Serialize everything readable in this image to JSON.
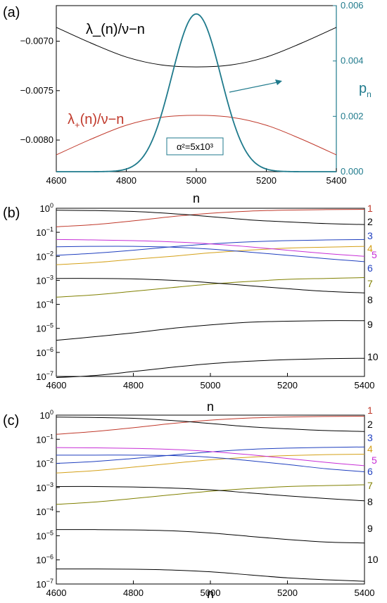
{
  "chart_data": [
    {
      "panel": "(a)",
      "type": "line",
      "xlabel": "n",
      "xlim": [
        4600,
        5400
      ],
      "xticks": [
        4600,
        4800,
        5000,
        5200,
        5400
      ],
      "ylim": [
        -0.00832,
        -0.00664
      ],
      "yticks": [
        "-0.0070",
        "-0.0075",
        "-0.0080"
      ],
      "ytick_values": [
        -0.007,
        -0.0075,
        -0.008
      ],
      "y2label_main": "p",
      "y2label_sub": "n",
      "y2lim": [
        0,
        0.006
      ],
      "y2ticks": [
        "0.000",
        "0.002",
        "0.004",
        "0.006"
      ],
      "y2tick_values": [
        0,
        0.002,
        0.004,
        0.006
      ],
      "annotation": "α²=5x10³",
      "colors": {
        "black": "#000000",
        "red": "#c0392b",
        "teal": "#1f7a8c"
      },
      "series": [
        {
          "name": "λ_(n)/ν−n",
          "axis": "left",
          "color": "#000000",
          "x": [
            4600,
            4700,
            4800,
            4900,
            5000,
            5100,
            5200,
            5300,
            5400
          ],
          "y": [
            -0.00686,
            -0.00702,
            -0.00716,
            -0.00724,
            -0.00726,
            -0.00724,
            -0.00716,
            -0.00702,
            -0.00686
          ]
        },
        {
          "name_main": "λ",
          "name_sub": "+",
          "name_rest": "(n)/ν−n",
          "axis": "left",
          "color": "#c0392b",
          "x": [
            4600,
            4700,
            4800,
            4900,
            5000,
            5100,
            5200,
            5300,
            5400
          ],
          "y": [
            -0.00815,
            -0.00799,
            -0.00785,
            -0.00777,
            -0.00775,
            -0.00777,
            -0.00785,
            -0.00799,
            -0.00815
          ]
        },
        {
          "name": "",
          "axis": "right",
          "color": "#1f7a8c",
          "shape": "gaussian",
          "center": 5000,
          "peak": 0.0057,
          "sigma": 70
        }
      ]
    },
    {
      "panel": "(b)",
      "type": "line",
      "scale": "log",
      "xlabel": "n",
      "xlim": [
        4600,
        5400
      ],
      "xticks": [
        4600,
        4800,
        5000,
        5200,
        5400
      ],
      "ylim_log10": [
        -7,
        0
      ],
      "yticks": [
        {
          "base": "10",
          "exp": "0"
        },
        {
          "base": "10",
          "exp": "-1"
        },
        {
          "base": "10",
          "exp": "-2"
        },
        {
          "base": "10",
          "exp": "-3"
        },
        {
          "base": "10",
          "exp": "-4"
        },
        {
          "base": "10",
          "exp": "-5"
        },
        {
          "base": "10",
          "exp": "-6"
        },
        {
          "base": "10",
          "exp": "-7"
        }
      ],
      "x": [
        4600,
        4700,
        4800,
        4900,
        5000,
        5100,
        5200,
        5300,
        5400
      ],
      "series": [
        {
          "label": "1",
          "color": "#c0392b",
          "y": [
            0.17,
            0.21,
            0.3,
            0.45,
            0.62,
            0.76,
            0.84,
            0.88,
            0.9
          ]
        },
        {
          "label": "2",
          "color": "#000000",
          "y": [
            0.83,
            0.8,
            0.74,
            0.6,
            0.45,
            0.33,
            0.27,
            0.23,
            0.21
          ]
        },
        {
          "label": "3",
          "color": "#1f3fbf",
          "y": [
            0.011,
            0.0135,
            0.018,
            0.025,
            0.033,
            0.04,
            0.045,
            0.048,
            0.05
          ]
        },
        {
          "label": "4",
          "color": "#d4a017",
          "y": [
            0.0045,
            0.0055,
            0.0075,
            0.01,
            0.014,
            0.018,
            0.022,
            0.024,
            0.026
          ]
        },
        {
          "label": "5",
          "color": "#c72ed6",
          "y": [
            0.05,
            0.048,
            0.045,
            0.04,
            0.033,
            0.025,
            0.018,
            0.013,
            0.01
          ]
        },
        {
          "label": "6",
          "color": "#1f3fbf",
          "y": [
            0.025,
            0.026,
            0.026,
            0.024,
            0.02,
            0.015,
            0.011,
            0.008,
            0.006
          ]
        },
        {
          "label": "7",
          "color": "#808000",
          "y": [
            0.0002,
            0.00025,
            0.00035,
            0.0005,
            0.0007,
            0.0009,
            0.0011,
            0.0012,
            0.0013
          ]
        },
        {
          "label": "8",
          "color": "#000000",
          "y": [
            0.0012,
            0.0012,
            0.00115,
            0.001,
            0.0008,
            0.0006,
            0.00045,
            0.00035,
            0.0003
          ]
        },
        {
          "label": "9",
          "color": "#000000",
          "y": [
            3.2e-06,
            4.5e-06,
            6.5e-06,
            1e-05,
            1.4e-05,
            1.8e-05,
            2e-05,
            2.1e-05,
            2.1e-05
          ]
        },
        {
          "label": "10",
          "color": "#000000",
          "y": [
            9e-08,
            1.1e-07,
            1.6e-07,
            2.4e-07,
            3.4e-07,
            4.3e-07,
            5e-07,
            5.5e-07,
            5.7e-07
          ]
        }
      ]
    },
    {
      "panel": "(c)",
      "type": "line",
      "scale": "log",
      "xlabel": "n",
      "xlim": [
        4600,
        5400
      ],
      "xticks": [
        4600,
        4800,
        5000,
        5200,
        5400
      ],
      "ylim_log10": [
        -7,
        0
      ],
      "yticks": [
        {
          "base": "10",
          "exp": "0"
        },
        {
          "base": "10",
          "exp": "-1"
        },
        {
          "base": "10",
          "exp": "-2"
        },
        {
          "base": "10",
          "exp": "-3"
        },
        {
          "base": "10",
          "exp": "-4"
        },
        {
          "base": "10",
          "exp": "-5"
        },
        {
          "base": "10",
          "exp": "-6"
        },
        {
          "base": "10",
          "exp": "-7"
        }
      ],
      "x": [
        4600,
        4700,
        4800,
        4900,
        5000,
        5100,
        5200,
        5300,
        5400
      ],
      "series": [
        {
          "label": "1",
          "color": "#c0392b",
          "y": [
            0.16,
            0.21,
            0.3,
            0.45,
            0.62,
            0.76,
            0.84,
            0.88,
            0.9
          ]
        },
        {
          "label": "2",
          "color": "#000000",
          "y": [
            0.83,
            0.8,
            0.74,
            0.6,
            0.45,
            0.33,
            0.27,
            0.23,
            0.21
          ]
        },
        {
          "label": "3",
          "color": "#1f3fbf",
          "y": [
            0.01,
            0.012,
            0.016,
            0.022,
            0.03,
            0.038,
            0.043,
            0.046,
            0.048
          ]
        },
        {
          "label": "4",
          "color": "#d4a017",
          "y": [
            0.004,
            0.005,
            0.007,
            0.01,
            0.014,
            0.018,
            0.021,
            0.023,
            0.024
          ]
        },
        {
          "label": "5",
          "color": "#c72ed6",
          "y": [
            0.045,
            0.044,
            0.042,
            0.038,
            0.031,
            0.023,
            0.016,
            0.011,
            0.008
          ]
        },
        {
          "label": "6",
          "color": "#1f3fbf",
          "y": [
            0.022,
            0.022,
            0.022,
            0.021,
            0.018,
            0.013,
            0.009,
            0.006,
            0.0045
          ]
        },
        {
          "label": "7",
          "color": "#808000",
          "y": [
            0.0002,
            0.00025,
            0.00035,
            0.0005,
            0.0007,
            0.0009,
            0.0011,
            0.0012,
            0.0013
          ]
        },
        {
          "label": "8",
          "color": "#000000",
          "y": [
            0.0011,
            0.0011,
            0.00105,
            0.00095,
            0.0008,
            0.0006,
            0.00045,
            0.00035,
            0.00028
          ]
        },
        {
          "label": "9",
          "color": "#000000",
          "y": [
            1.8e-05,
            1.8e-05,
            1.75e-05,
            1.6e-05,
            1.3e-05,
            9.5e-06,
            7e-06,
            5.5e-06,
            5e-06
          ]
        },
        {
          "label": "10",
          "color": "#000000",
          "y": [
            4.2e-07,
            4.2e-07,
            4.1e-07,
            3.8e-07,
            3.2e-07,
            2.4e-07,
            1.8e-07,
            1.5e-07,
            1.3e-07
          ]
        }
      ]
    }
  ]
}
